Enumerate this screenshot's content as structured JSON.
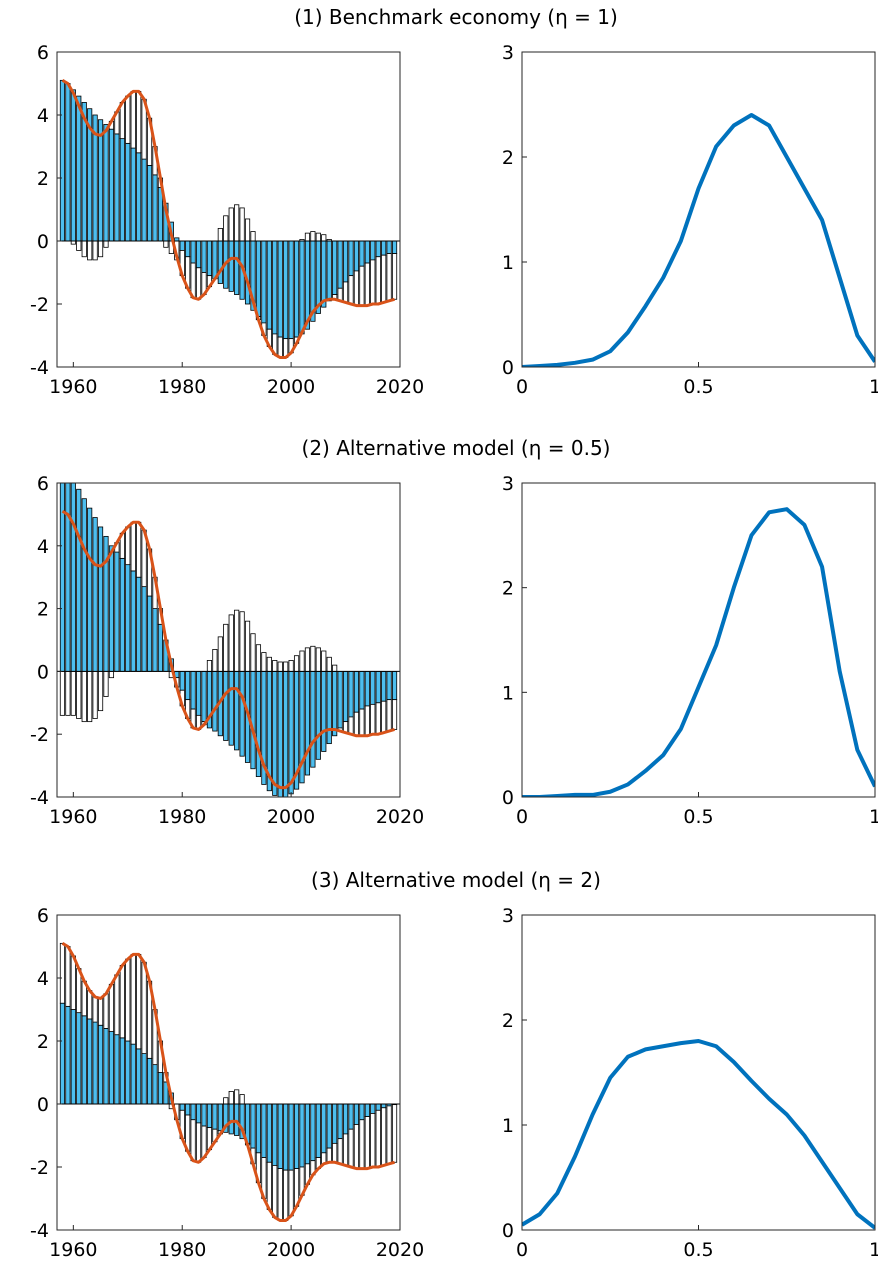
{
  "chart_data": [
    {
      "type": "bar",
      "title": "(1) Benchmark economy (η = 1)",
      "x": [
        1958,
        1959,
        1960,
        1961,
        1962,
        1963,
        1964,
        1965,
        1966,
        1967,
        1968,
        1969,
        1970,
        1971,
        1972,
        1973,
        1974,
        1975,
        1976,
        1977,
        1978,
        1979,
        1980,
        1981,
        1982,
        1983,
        1984,
        1985,
        1986,
        1987,
        1988,
        1989,
        1990,
        1991,
        1992,
        1993,
        1994,
        1995,
        1996,
        1997,
        1998,
        1999,
        2000,
        2001,
        2002,
        2003,
        2004,
        2005,
        2006,
        2007,
        2008,
        2009,
        2010,
        2011,
        2012,
        2013,
        2014,
        2015,
        2016,
        2017,
        2018,
        2019
      ],
      "series": [
        {
          "color": "#4dbeee",
          "values": [
            5.1,
            5.0,
            4.8,
            4.6,
            4.4,
            4.2,
            4.0,
            3.85,
            3.7,
            3.55,
            3.4,
            3.25,
            3.1,
            2.95,
            2.8,
            2.6,
            2.4,
            2.1,
            1.7,
            1.2,
            0.6,
            0.1,
            -0.3,
            -0.5,
            -0.7,
            -0.85,
            -1.0,
            -1.1,
            -1.2,
            -1.35,
            -1.5,
            -1.6,
            -1.7,
            -1.85,
            -2.0,
            -2.2,
            -2.4,
            -2.6,
            -2.8,
            -2.95,
            -3.05,
            -3.1,
            -3.1,
            -3.05,
            -2.95,
            -2.8,
            -2.55,
            -2.3,
            -2.1,
            -1.9,
            -1.7,
            -1.5,
            -1.3,
            -1.1,
            -0.95,
            -0.8,
            -0.7,
            -0.6,
            -0.5,
            -0.45,
            -0.4,
            -0.4
          ]
        },
        {
          "color": "#ffffff",
          "values": [
            0,
            0,
            -0.1,
            -0.3,
            -0.5,
            -0.6,
            -0.6,
            -0.5,
            -0.2,
            0.25,
            0.7,
            1.15,
            1.5,
            1.8,
            1.95,
            1.9,
            1.5,
            0.9,
            0.3,
            -0.2,
            -0.4,
            -0.6,
            -0.8,
            -1.0,
            -1.1,
            -1.0,
            -0.7,
            -0.35,
            0,
            0.4,
            0.8,
            1.05,
            1.15,
            1.05,
            0.7,
            0.3,
            -0.1,
            -0.4,
            -0.55,
            -0.65,
            -0.65,
            -0.6,
            -0.45,
            -0.2,
            0.05,
            0.25,
            0.3,
            0.25,
            0.2,
            0.05,
            -0.15,
            -0.4,
            -0.65,
            -0.9,
            -1.1,
            -1.25,
            -1.35,
            -1.4,
            -1.5,
            -1.5,
            -1.5,
            -1.45
          ]
        }
      ],
      "line": {
        "color": "#d95319",
        "values": [
          5.1,
          5.0,
          4.7,
          4.3,
          3.9,
          3.6,
          3.4,
          3.35,
          3.5,
          3.8,
          4.1,
          4.4,
          4.6,
          4.75,
          4.75,
          4.5,
          3.9,
          3.0,
          2.0,
          1.0,
          0.2,
          -0.5,
          -1.1,
          -1.5,
          -1.8,
          -1.85,
          -1.7,
          -1.45,
          -1.2,
          -0.95,
          -0.7,
          -0.55,
          -0.55,
          -0.8,
          -1.3,
          -1.9,
          -2.5,
          -3.0,
          -3.35,
          -3.6,
          -3.7,
          -3.7,
          -3.55,
          -3.25,
          -2.9,
          -2.55,
          -2.25,
          -2.05,
          -1.9,
          -1.85,
          -1.85,
          -1.9,
          -1.95,
          -2.0,
          -2.05,
          -2.05,
          -2.05,
          -2.0,
          -2.0,
          -1.95,
          -1.9,
          -1.85
        ]
      },
      "xlim": [
        1957,
        2020
      ],
      "xticks": [
        1960,
        1980,
        2000,
        2020
      ],
      "ylim": [
        -4,
        6
      ],
      "yticks": [
        -4,
        -2,
        0,
        2,
        4,
        6
      ]
    },
    {
      "type": "line",
      "x": [
        0,
        0.05,
        0.1,
        0.15,
        0.2,
        0.25,
        0.3,
        0.35,
        0.4,
        0.45,
        0.5,
        0.55,
        0.6,
        0.65,
        0.7,
        0.75,
        0.8,
        0.85,
        0.9,
        0.95,
        1
      ],
      "series": [
        {
          "color": "#0072bd",
          "values": [
            0,
            0.01,
            0.02,
            0.04,
            0.07,
            0.15,
            0.33,
            0.58,
            0.85,
            1.2,
            1.7,
            2.1,
            2.3,
            2.4,
            2.3,
            2.0,
            1.7,
            1.4,
            0.85,
            0.3,
            0.05
          ]
        }
      ],
      "xlim": [
        0,
        1
      ],
      "xticks": [
        0,
        0.5,
        1
      ],
      "ylim": [
        0,
        3
      ],
      "yticks": [
        0,
        1,
        2,
        3
      ]
    },
    {
      "type": "bar",
      "title": "(2) Alternative model (η = 0.5)",
      "x": [
        1958,
        1959,
        1960,
        1961,
        1962,
        1963,
        1964,
        1965,
        1966,
        1967,
        1968,
        1969,
        1970,
        1971,
        1972,
        1973,
        1974,
        1975,
        1976,
        1977,
        1978,
        1979,
        1980,
        1981,
        1982,
        1983,
        1984,
        1985,
        1986,
        1987,
        1988,
        1989,
        1990,
        1991,
        1992,
        1993,
        1994,
        1995,
        1996,
        1997,
        1998,
        1999,
        2000,
        2001,
        2002,
        2003,
        2004,
        2005,
        2006,
        2007,
        2008,
        2009,
        2010,
        2011,
        2012,
        2013,
        2014,
        2015,
        2016,
        2017,
        2018,
        2019
      ],
      "series": [
        {
          "color": "#4dbeee",
          "values": [
            6.5,
            6.4,
            6.1,
            5.8,
            5.5,
            5.2,
            4.9,
            4.6,
            4.3,
            4.0,
            3.8,
            3.6,
            3.4,
            3.2,
            3.0,
            2.7,
            2.4,
            2.0,
            1.5,
            1.0,
            0.4,
            -0.2,
            -0.6,
            -0.9,
            -1.2,
            -1.4,
            -1.6,
            -1.8,
            -1.9,
            -2.05,
            -2.2,
            -2.35,
            -2.5,
            -2.7,
            -2.9,
            -3.1,
            -3.35,
            -3.6,
            -3.8,
            -3.95,
            -4.0,
            -4.0,
            -3.9,
            -3.75,
            -3.55,
            -3.3,
            -3.05,
            -2.8,
            -2.55,
            -2.3,
            -2.05,
            -1.8,
            -1.6,
            -1.45,
            -1.3,
            -1.2,
            -1.1,
            -1.05,
            -1.0,
            -0.95,
            -0.9,
            -0.9
          ]
        },
        {
          "color": "#ffffff",
          "values": [
            -1.4,
            -1.4,
            -1.4,
            -1.5,
            -1.6,
            -1.6,
            -1.5,
            -1.25,
            -0.8,
            -0.2,
            0.3,
            0.8,
            1.2,
            1.55,
            1.75,
            1.8,
            1.5,
            1.0,
            0.5,
            0,
            -0.2,
            -0.3,
            -0.5,
            -0.6,
            -0.6,
            -0.45,
            -0.1,
            0.35,
            0.7,
            1.1,
            1.5,
            1.8,
            1.95,
            1.9,
            1.6,
            1.2,
            0.85,
            0.6,
            0.45,
            0.35,
            0.3,
            0.3,
            0.35,
            0.5,
            0.65,
            0.75,
            0.8,
            0.75,
            0.65,
            0.45,
            0.2,
            -0.1,
            -0.35,
            -0.55,
            -0.75,
            -0.85,
            -0.95,
            -0.95,
            -1.0,
            -1.0,
            -1.0,
            -0.95
          ]
        }
      ],
      "line": {
        "color": "#d95319",
        "values": [
          5.1,
          5.0,
          4.7,
          4.3,
          3.9,
          3.6,
          3.4,
          3.35,
          3.5,
          3.8,
          4.1,
          4.4,
          4.6,
          4.75,
          4.75,
          4.5,
          3.9,
          3.0,
          2.0,
          1.0,
          0.2,
          -0.5,
          -1.1,
          -1.5,
          -1.8,
          -1.85,
          -1.7,
          -1.45,
          -1.2,
          -0.95,
          -0.7,
          -0.55,
          -0.55,
          -0.8,
          -1.3,
          -1.9,
          -2.5,
          -3.0,
          -3.35,
          -3.6,
          -3.7,
          -3.7,
          -3.55,
          -3.25,
          -2.9,
          -2.55,
          -2.25,
          -2.05,
          -1.9,
          -1.85,
          -1.85,
          -1.9,
          -1.95,
          -2.0,
          -2.05,
          -2.05,
          -2.05,
          -2.0,
          -2.0,
          -1.95,
          -1.9,
          -1.85
        ]
      },
      "xlim": [
        1957,
        2020
      ],
      "xticks": [
        1960,
        1980,
        2000,
        2020
      ],
      "ylim": [
        -4,
        6
      ],
      "yticks": [
        -4,
        -2,
        0,
        2,
        4,
        6
      ]
    },
    {
      "type": "line",
      "x": [
        0,
        0.05,
        0.1,
        0.15,
        0.2,
        0.25,
        0.3,
        0.35,
        0.4,
        0.45,
        0.5,
        0.55,
        0.6,
        0.65,
        0.7,
        0.75,
        0.8,
        0.85,
        0.9,
        0.95,
        1
      ],
      "series": [
        {
          "color": "#0072bd",
          "values": [
            0,
            0,
            0.01,
            0.02,
            0.02,
            0.05,
            0.12,
            0.25,
            0.4,
            0.65,
            1.05,
            1.45,
            2.0,
            2.5,
            2.72,
            2.75,
            2.6,
            2.2,
            1.2,
            0.45,
            0.1
          ]
        }
      ],
      "xlim": [
        0,
        1
      ],
      "xticks": [
        0,
        0.5,
        1
      ],
      "ylim": [
        0,
        3
      ],
      "yticks": [
        0,
        1,
        2,
        3
      ]
    },
    {
      "type": "bar",
      "title": "(3) Alternative model (η = 2)",
      "x": [
        1958,
        1959,
        1960,
        1961,
        1962,
        1963,
        1964,
        1965,
        1966,
        1967,
        1968,
        1969,
        1970,
        1971,
        1972,
        1973,
        1974,
        1975,
        1976,
        1977,
        1978,
        1979,
        1980,
        1981,
        1982,
        1983,
        1984,
        1985,
        1986,
        1987,
        1988,
        1989,
        1990,
        1991,
        1992,
        1993,
        1994,
        1995,
        1996,
        1997,
        1998,
        1999,
        2000,
        2001,
        2002,
        2003,
        2004,
        2005,
        2006,
        2007,
        2008,
        2009,
        2010,
        2011,
        2012,
        2013,
        2014,
        2015,
        2016,
        2017,
        2018,
        2019
      ],
      "series": [
        {
          "color": "#4dbeee",
          "values": [
            3.2,
            3.1,
            3.0,
            2.9,
            2.8,
            2.7,
            2.6,
            2.5,
            2.4,
            2.3,
            2.2,
            2.1,
            2.0,
            1.9,
            1.75,
            1.6,
            1.45,
            1.25,
            1.0,
            0.7,
            0.35,
            0,
            -0.2,
            -0.35,
            -0.5,
            -0.6,
            -0.7,
            -0.75,
            -0.8,
            -0.85,
            -0.9,
            -0.95,
            -1.0,
            -1.1,
            -1.25,
            -1.4,
            -1.55,
            -1.7,
            -1.85,
            -1.95,
            -2.05,
            -2.1,
            -2.1,
            -2.05,
            -2.0,
            -1.9,
            -1.8,
            -1.7,
            -1.55,
            -1.4,
            -1.25,
            -1.1,
            -0.95,
            -0.8,
            -0.65,
            -0.5,
            -0.4,
            -0.3,
            -0.2,
            -0.12,
            -0.06,
            -0.02
          ]
        },
        {
          "color": "#ffffff",
          "values": [
            1.9,
            1.9,
            1.7,
            1.4,
            1.1,
            0.9,
            0.8,
            0.85,
            1.1,
            1.5,
            1.9,
            2.3,
            2.6,
            2.85,
            3.0,
            2.9,
            2.45,
            1.75,
            1.0,
            0.3,
            -0.15,
            -0.5,
            -0.9,
            -1.15,
            -1.3,
            -1.25,
            -1.0,
            -0.7,
            -0.4,
            -0.1,
            0.2,
            0.4,
            0.45,
            0.3,
            -0.05,
            -0.5,
            -0.95,
            -1.3,
            -1.5,
            -1.65,
            -1.65,
            -1.6,
            -1.45,
            -1.2,
            -0.9,
            -0.65,
            -0.45,
            -0.35,
            -0.35,
            -0.45,
            -0.6,
            -0.8,
            -1.0,
            -1.2,
            -1.4,
            -1.55,
            -1.65,
            -1.7,
            -1.8,
            -1.83,
            -1.84,
            -1.83
          ]
        }
      ],
      "line": {
        "color": "#d95319",
        "values": [
          5.1,
          5.0,
          4.7,
          4.3,
          3.9,
          3.6,
          3.4,
          3.35,
          3.5,
          3.8,
          4.1,
          4.4,
          4.6,
          4.75,
          4.75,
          4.5,
          3.9,
          3.0,
          2.0,
          1.0,
          0.2,
          -0.5,
          -1.1,
          -1.5,
          -1.8,
          -1.85,
          -1.7,
          -1.45,
          -1.2,
          -0.95,
          -0.7,
          -0.55,
          -0.55,
          -0.8,
          -1.3,
          -1.9,
          -2.5,
          -3.0,
          -3.35,
          -3.6,
          -3.7,
          -3.7,
          -3.55,
          -3.25,
          -2.9,
          -2.55,
          -2.25,
          -2.05,
          -1.9,
          -1.85,
          -1.85,
          -1.9,
          -1.95,
          -2.0,
          -2.05,
          -2.05,
          -2.05,
          -2.0,
          -2.0,
          -1.95,
          -1.9,
          -1.85
        ]
      },
      "xlim": [
        1957,
        2020
      ],
      "xticks": [
        1960,
        1980,
        2000,
        2020
      ],
      "ylim": [
        -4,
        6
      ],
      "yticks": [
        -4,
        -2,
        0,
        2,
        4,
        6
      ]
    },
    {
      "type": "line",
      "x": [
        0,
        0.05,
        0.1,
        0.15,
        0.2,
        0.25,
        0.3,
        0.35,
        0.4,
        0.45,
        0.5,
        0.55,
        0.6,
        0.65,
        0.7,
        0.75,
        0.8,
        0.85,
        0.9,
        0.95,
        1
      ],
      "series": [
        {
          "color": "#0072bd",
          "values": [
            0.05,
            0.15,
            0.35,
            0.7,
            1.1,
            1.45,
            1.65,
            1.72,
            1.75,
            1.78,
            1.8,
            1.75,
            1.6,
            1.42,
            1.25,
            1.1,
            0.9,
            0.65,
            0.4,
            0.15,
            0.02
          ]
        }
      ],
      "xlim": [
        0,
        1
      ],
      "xticks": [
        0,
        0.5,
        1
      ],
      "ylim": [
        0,
        3
      ],
      "yticks": [
        0,
        1,
        2,
        3
      ]
    }
  ]
}
